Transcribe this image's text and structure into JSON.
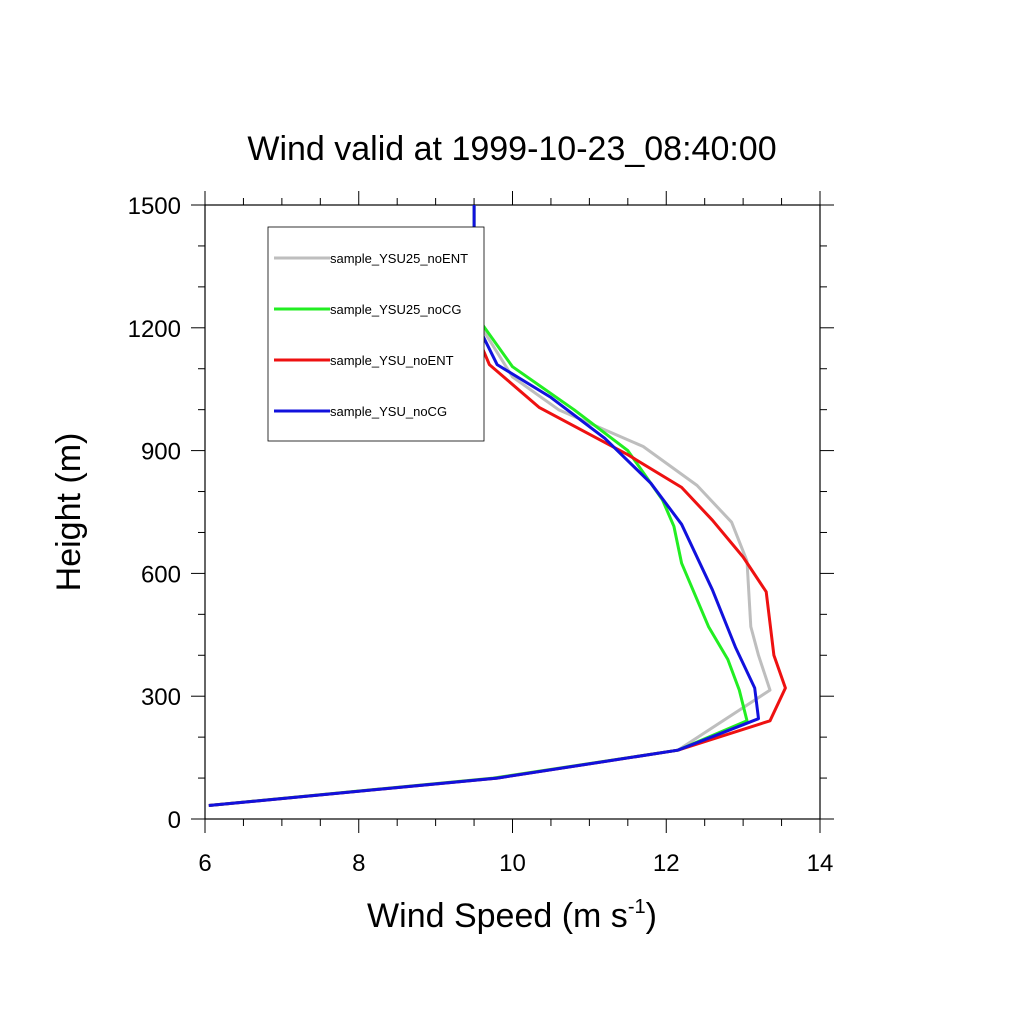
{
  "chart_data": {
    "type": "line",
    "title": "Wind valid at 1999-10-23_08:40:00",
    "xlabel": "Wind Speed (m s",
    "xlabel_superscript": "-1",
    "xlabel_suffix": ")",
    "ylabel": "Height (m)",
    "xlim": [
      6,
      14
    ],
    "ylim": [
      0,
      1500
    ],
    "x_ticks": [
      6,
      8,
      10,
      12,
      14
    ],
    "y_ticks": [
      0,
      300,
      600,
      900,
      1200,
      1500
    ],
    "grid": false,
    "legend_placement": "top-left",
    "series": [
      {
        "name": "sample_YSU25_noENT",
        "color": "#bebebe",
        "points": [
          [
            6.05,
            33
          ],
          [
            9.8,
            100
          ],
          [
            12.15,
            168
          ],
          [
            13.35,
            315
          ],
          [
            13.2,
            400
          ],
          [
            13.1,
            470
          ],
          [
            13.05,
            630
          ],
          [
            12.85,
            725
          ],
          [
            12.4,
            815
          ],
          [
            11.7,
            910
          ],
          [
            10.6,
            1000
          ],
          [
            10.0,
            1080
          ],
          [
            9.6,
            1200
          ],
          [
            9.5,
            1300
          ],
          [
            9.5,
            1500
          ]
        ]
      },
      {
        "name": "sample_YSU25_noCG",
        "color": "#22ee22",
        "points": [
          [
            6.05,
            33
          ],
          [
            9.75,
            100
          ],
          [
            12.15,
            168
          ],
          [
            13.05,
            240
          ],
          [
            12.95,
            315
          ],
          [
            12.8,
            390
          ],
          [
            12.55,
            470
          ],
          [
            12.2,
            625
          ],
          [
            12.1,
            715
          ],
          [
            11.95,
            780
          ],
          [
            11.5,
            900
          ],
          [
            10.8,
            1000
          ],
          [
            10.0,
            1105
          ],
          [
            9.6,
            1210
          ],
          [
            9.5,
            1320
          ],
          [
            9.5,
            1500
          ]
        ]
      },
      {
        "name": "sample_YSU_noENT",
        "color": "#ee1111",
        "points": [
          [
            6.05,
            33
          ],
          [
            9.8,
            100
          ],
          [
            12.15,
            168
          ],
          [
            13.35,
            240
          ],
          [
            13.55,
            320
          ],
          [
            13.4,
            400
          ],
          [
            13.3,
            555
          ],
          [
            13.0,
            640
          ],
          [
            12.6,
            730
          ],
          [
            12.2,
            810
          ],
          [
            11.5,
            890
          ],
          [
            10.35,
            1005
          ],
          [
            9.7,
            1110
          ],
          [
            9.45,
            1220
          ],
          [
            9.45,
            1310
          ]
        ]
      },
      {
        "name": "sample_YSU_noCG",
        "color": "#1111dd",
        "points": [
          [
            6.05,
            33
          ],
          [
            9.8,
            100
          ],
          [
            12.15,
            168
          ],
          [
            13.2,
            245
          ],
          [
            13.15,
            320
          ],
          [
            12.9,
            420
          ],
          [
            12.6,
            560
          ],
          [
            12.2,
            720
          ],
          [
            11.8,
            820
          ],
          [
            11.2,
            930
          ],
          [
            10.5,
            1030
          ],
          [
            9.8,
            1110
          ],
          [
            9.55,
            1205
          ],
          [
            9.5,
            1320
          ],
          [
            9.5,
            1500
          ]
        ]
      }
    ]
  }
}
